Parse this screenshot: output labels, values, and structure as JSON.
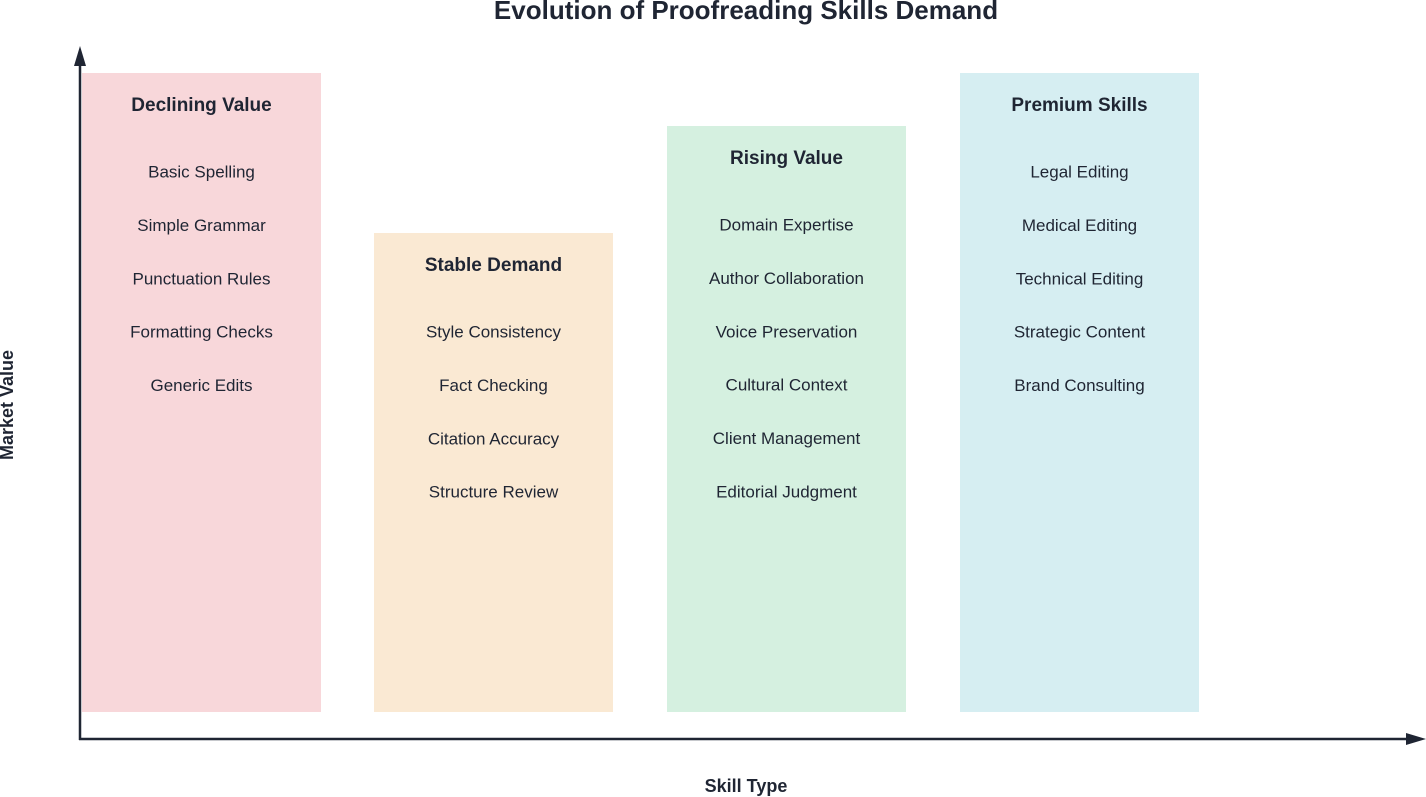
{
  "title": "Evolution of Proofreading Skills Demand",
  "axes": {
    "x_label": "Skill Type",
    "y_label": "Market Value"
  },
  "columns": [
    {
      "title": "Declining Value",
      "items": [
        "Basic Spelling",
        "Simple Grammar",
        "Punctuation Rules",
        "Formatting Checks",
        "Generic Edits"
      ]
    },
    {
      "title": "Stable Demand",
      "items": [
        "Style Consistency",
        "Fact Checking",
        "Citation Accuracy",
        "Structure Review"
      ]
    },
    {
      "title": "Rising Value",
      "items": [
        "Domain Expertise",
        "Author Collaboration",
        "Voice Preservation",
        "Cultural Context",
        "Client Management",
        "Editorial Judgment"
      ]
    },
    {
      "title": "Premium Skills",
      "items": [
        "Legal Editing",
        "Medical Editing",
        "Technical Editing",
        "Strategic Content",
        "Brand Consulting"
      ]
    }
  ]
}
